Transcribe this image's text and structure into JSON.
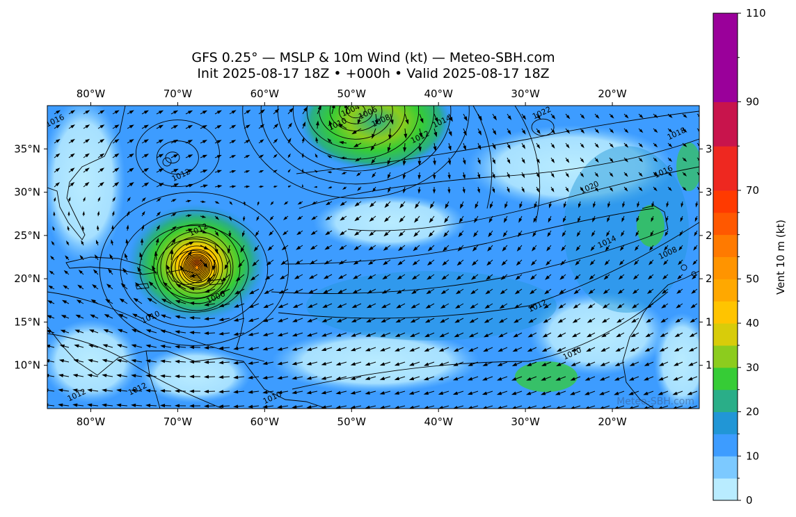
{
  "title_line1": "GFS 0.25° — MSLP & 10m Wind (kt) — Meteo-SBH.com",
  "title_line2": "Init 2025-08-17 18Z • +000h • Valid 2025-08-17 18Z",
  "watermark": "Meteo-SBH.com",
  "colorbar": {
    "label": "Vent 10 m (kt)",
    "min": 0,
    "max": 110,
    "tick_values": [
      0,
      10,
      20,
      30,
      40,
      50,
      70,
      90,
      110
    ],
    "tick_labels": [
      "0",
      "10",
      "20",
      "30",
      "40",
      "50",
      "70",
      "90",
      "110"
    ],
    "bins": [
      0,
      5,
      10,
      15,
      20,
      25,
      30,
      35,
      40,
      45,
      50,
      55,
      60,
      65,
      70,
      80,
      90,
      100,
      110
    ],
    "colors": [
      "#b9ecff",
      "#7cc9ff",
      "#3d9cff",
      "#2196d6",
      "#2aae88",
      "#36cc36",
      "#8ccc1e",
      "#d8cc0a",
      "#ffc400",
      "#ffa800",
      "#ff9400",
      "#ff7a00",
      "#ff5800",
      "#ff3a00",
      "#ee2820",
      "#c8144c",
      "#9a009a",
      "#9a009a"
    ]
  },
  "map": {
    "lon_min": -85,
    "lon_max": -10,
    "lat_min": 5,
    "lat_max": 40,
    "lon_ticks": [
      -80,
      -70,
      -60,
      -50,
      -40,
      -30,
      -20
    ],
    "lon_labels": [
      "80°W",
      "70°W",
      "60°W",
      "50°W",
      "40°W",
      "30°W",
      "20°W"
    ],
    "lat_ticks": [
      10,
      15,
      20,
      25,
      30,
      35
    ],
    "lat_labels": [
      "10°N",
      "15°N",
      "20°N",
      "25°N",
      "30°N",
      "35°N"
    ],
    "right_lat_fragments": [
      "1",
      "1",
      "2",
      "2",
      "3",
      "3"
    ]
  },
  "isobar_labels": [
    {
      "text": "1022",
      "lon": -28,
      "lat": 38.9
    },
    {
      "text": "1020",
      "lon": -22.5,
      "lat": 30.3
    },
    {
      "text": "1016",
      "lon": -14,
      "lat": 32.1
    },
    {
      "text": "1018",
      "lon": -12.5,
      "lat": 36.5
    },
    {
      "text": "1014",
      "lon": -20.5,
      "lat": 24.0
    },
    {
      "text": "1012",
      "lon": -28.5,
      "lat": 16.6
    },
    {
      "text": "1010",
      "lon": -24.5,
      "lat": 11.1
    },
    {
      "text": "1008",
      "lon": -13.5,
      "lat": 22.7
    },
    {
      "text": "1012",
      "lon": -42,
      "lat": 36.1
    },
    {
      "text": "1014",
      "lon": -39.5,
      "lat": 37.9
    },
    {
      "text": "1008",
      "lon": -46.5,
      "lat": 38.0
    },
    {
      "text": "1006",
      "lon": -48,
      "lat": 38.9
    },
    {
      "text": "1004",
      "lon": -50,
      "lat": 39.2
    },
    {
      "text": "1010",
      "lon": -51.5,
      "lat": 37.6
    },
    {
      "text": "1012",
      "lon": -69.5,
      "lat": 31.7
    },
    {
      "text": "1016",
      "lon": -84,
      "lat": 38.0
    },
    {
      "text": "1012",
      "lon": -67.5,
      "lat": 25.4
    },
    {
      "text": "1006",
      "lon": -65.5,
      "lat": 17.6
    },
    {
      "text": "1010",
      "lon": -73,
      "lat": 15.3
    },
    {
      "text": "1012",
      "lon": -81.5,
      "lat": 6.3
    },
    {
      "text": "1010",
      "lon": -59,
      "lat": 6.0
    },
    {
      "text": "1012",
      "lon": -74.5,
      "lat": 7.0
    }
  ],
  "colors": {
    "frame": "#000000",
    "isobar": "#000000",
    "arrow": "#000000",
    "coast": "#000000"
  }
}
